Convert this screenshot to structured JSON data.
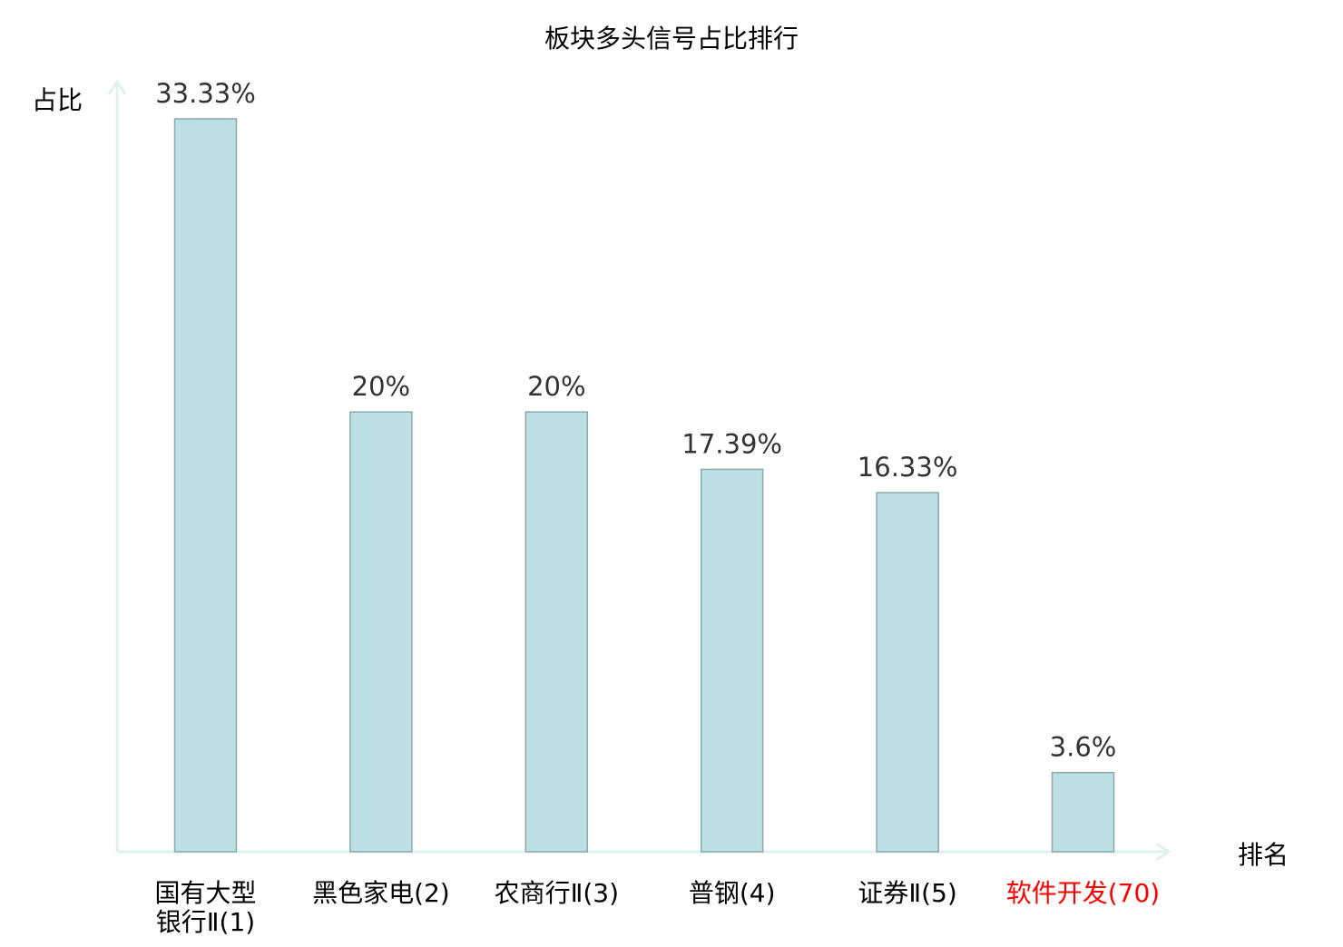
{
  "chart_data": {
    "type": "bar",
    "title": "板块多头信号占比排行",
    "xlabel": "排名",
    "ylabel": "占比",
    "categories": [
      "国有大型银行Ⅱ(1)",
      "黑色家电(2)",
      "农商行Ⅱ(3)",
      "普钢(4)",
      "证券Ⅱ(5)",
      "软件开发(70)"
    ],
    "category_lines": [
      [
        "国有大型",
        "银行Ⅱ(1)"
      ],
      [
        "黑色家电(2)"
      ],
      [
        "农商行Ⅱ(3)"
      ],
      [
        "普钢(4)"
      ],
      [
        "证券Ⅱ(5)"
      ],
      [
        "软件开发(70)"
      ]
    ],
    "values": [
      33.33,
      20,
      20,
      17.39,
      16.33,
      3.6
    ],
    "data_labels": [
      "33.33%",
      "20%",
      "20%",
      "17.39%",
      "16.33%",
      "3.6%"
    ],
    "highlight_index": 5,
    "ylim": [
      0,
      33.33
    ],
    "grid": false,
    "colors": {
      "bar_fill": "#bce0e3",
      "bar_stroke": "#8aa9ab",
      "axis": "#dff2f0",
      "label": "#000000",
      "highlight": "#ff0000",
      "value_label": "#333333"
    }
  }
}
